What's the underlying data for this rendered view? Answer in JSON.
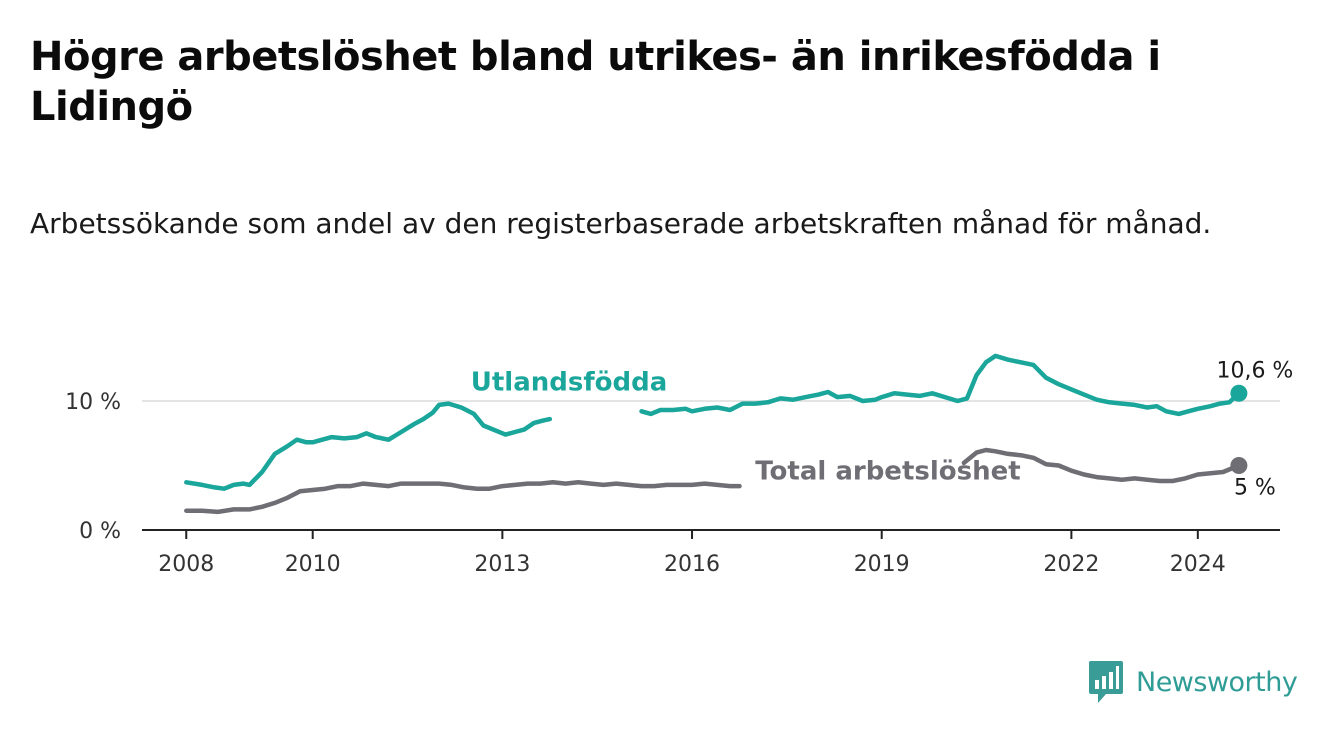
{
  "header": {
    "title": "Högre arbetslöshet bland utrikes- än inrikesfödda i Lidingö",
    "subtitle": "Arbetssökande som andel av den registerbaserade arbetskraften månad för månad."
  },
  "brand": {
    "name": "Newsworthy",
    "icon": "newsworthy-logo-icon",
    "color": "#2f9c96"
  },
  "chart_data": {
    "type": "line",
    "xlim": [
      2007.3,
      2025.3
    ],
    "ylim": [
      0,
      13.8
    ],
    "x_ticks": [
      2008,
      2010,
      2013,
      2016,
      2019,
      2022,
      2024
    ],
    "x_tick_labels": [
      "2008",
      "2010",
      "2013",
      "2016",
      "2019",
      "2022",
      "2024"
    ],
    "y_ticks": [
      0,
      10
    ],
    "y_tick_labels": [
      "0 %",
      "10 %"
    ],
    "grid": "horizontal",
    "series": [
      {
        "name": "Utlandsfödda",
        "color": "#1aa69a",
        "label": "Utlandsfödda",
        "end_label": "10,6 %",
        "points": [
          [
            2008.0,
            3.7
          ],
          [
            2008.25,
            3.5
          ],
          [
            2008.45,
            3.3
          ],
          [
            2008.6,
            3.2
          ],
          [
            2008.75,
            3.5
          ],
          [
            2008.9,
            3.6
          ],
          [
            2009.0,
            3.5
          ],
          [
            2009.2,
            4.5
          ],
          [
            2009.4,
            5.9
          ],
          [
            2009.6,
            6.5
          ],
          [
            2009.75,
            7.0
          ],
          [
            2009.9,
            6.8
          ],
          [
            2010.0,
            6.8
          ],
          [
            2010.15,
            7.0
          ],
          [
            2010.3,
            7.2
          ],
          [
            2010.5,
            7.1
          ],
          [
            2010.7,
            7.2
          ],
          [
            2010.85,
            7.5
          ],
          [
            2011.0,
            7.2
          ],
          [
            2011.2,
            7.0
          ],
          [
            2011.4,
            7.6
          ],
          [
            2011.6,
            8.2
          ],
          [
            2011.75,
            8.6
          ],
          [
            2011.9,
            9.1
          ],
          [
            2012.0,
            9.7
          ],
          [
            2012.15,
            9.8
          ],
          [
            2012.35,
            9.5
          ],
          [
            2012.55,
            9.0
          ],
          [
            2012.7,
            8.1
          ],
          [
            2012.9,
            7.7
          ],
          [
            2013.05,
            7.4
          ],
          [
            2013.2,
            7.6
          ],
          [
            2013.35,
            7.8
          ],
          [
            2013.5,
            8.3
          ],
          [
            2013.65,
            8.5
          ],
          [
            2013.75,
            8.6
          ],
          [
            2015.2,
            9.2
          ],
          [
            2015.35,
            9.0
          ],
          [
            2015.5,
            9.3
          ],
          [
            2015.7,
            9.3
          ],
          [
            2015.9,
            9.4
          ],
          [
            2016.0,
            9.2
          ],
          [
            2016.2,
            9.4
          ],
          [
            2016.4,
            9.5
          ],
          [
            2016.6,
            9.3
          ],
          [
            2016.8,
            9.8
          ],
          [
            2017.0,
            9.8
          ],
          [
            2017.2,
            9.9
          ],
          [
            2017.4,
            10.2
          ],
          [
            2017.6,
            10.1
          ],
          [
            2017.8,
            10.3
          ],
          [
            2018.0,
            10.5
          ],
          [
            2018.15,
            10.7
          ],
          [
            2018.3,
            10.3
          ],
          [
            2018.5,
            10.4
          ],
          [
            2018.7,
            10.0
          ],
          [
            2018.9,
            10.1
          ],
          [
            2019.0,
            10.3
          ],
          [
            2019.2,
            10.6
          ],
          [
            2019.4,
            10.5
          ],
          [
            2019.6,
            10.4
          ],
          [
            2019.8,
            10.6
          ],
          [
            2020.0,
            10.3
          ],
          [
            2020.2,
            10.0
          ],
          [
            2020.35,
            10.2
          ],
          [
            2020.5,
            12.0
          ],
          [
            2020.65,
            13.0
          ],
          [
            2020.8,
            13.5
          ],
          [
            2021.0,
            13.2
          ],
          [
            2021.2,
            13.0
          ],
          [
            2021.4,
            12.8
          ],
          [
            2021.6,
            11.8
          ],
          [
            2021.8,
            11.3
          ],
          [
            2022.0,
            10.9
          ],
          [
            2022.2,
            10.5
          ],
          [
            2022.4,
            10.1
          ],
          [
            2022.6,
            9.9
          ],
          [
            2022.8,
            9.8
          ],
          [
            2023.0,
            9.7
          ],
          [
            2023.2,
            9.5
          ],
          [
            2023.35,
            9.6
          ],
          [
            2023.5,
            9.2
          ],
          [
            2023.7,
            9.0
          ],
          [
            2023.85,
            9.2
          ],
          [
            2024.0,
            9.4
          ],
          [
            2024.2,
            9.6
          ],
          [
            2024.35,
            9.8
          ],
          [
            2024.5,
            9.9
          ],
          [
            2024.65,
            10.6
          ]
        ]
      },
      {
        "name": "Total arbetslöshet",
        "color": "#6e6e74",
        "label": "Total arbetslöshet",
        "end_label": "5 %",
        "points": [
          [
            2008.0,
            1.5
          ],
          [
            2008.25,
            1.5
          ],
          [
            2008.5,
            1.4
          ],
          [
            2008.75,
            1.6
          ],
          [
            2009.0,
            1.6
          ],
          [
            2009.2,
            1.8
          ],
          [
            2009.4,
            2.1
          ],
          [
            2009.6,
            2.5
          ],
          [
            2009.8,
            3.0
          ],
          [
            2010.0,
            3.1
          ],
          [
            2010.2,
            3.2
          ],
          [
            2010.4,
            3.4
          ],
          [
            2010.6,
            3.4
          ],
          [
            2010.8,
            3.6
          ],
          [
            2011.0,
            3.5
          ],
          [
            2011.2,
            3.4
          ],
          [
            2011.4,
            3.6
          ],
          [
            2011.6,
            3.6
          ],
          [
            2011.8,
            3.6
          ],
          [
            2012.0,
            3.6
          ],
          [
            2012.2,
            3.5
          ],
          [
            2012.4,
            3.3
          ],
          [
            2012.6,
            3.2
          ],
          [
            2012.8,
            3.2
          ],
          [
            2013.0,
            3.4
          ],
          [
            2013.2,
            3.5
          ],
          [
            2013.4,
            3.6
          ],
          [
            2013.6,
            3.6
          ],
          [
            2013.8,
            3.7
          ],
          [
            2014.0,
            3.6
          ],
          [
            2014.2,
            3.7
          ],
          [
            2014.4,
            3.6
          ],
          [
            2014.6,
            3.5
          ],
          [
            2014.8,
            3.6
          ],
          [
            2015.0,
            3.5
          ],
          [
            2015.2,
            3.4
          ],
          [
            2015.4,
            3.4
          ],
          [
            2015.6,
            3.5
          ],
          [
            2015.8,
            3.5
          ],
          [
            2016.0,
            3.5
          ],
          [
            2016.2,
            3.6
          ],
          [
            2016.4,
            3.5
          ],
          [
            2016.6,
            3.4
          ],
          [
            2016.75,
            3.4
          ],
          [
            2020.3,
            5.2
          ],
          [
            2020.5,
            6.0
          ],
          [
            2020.65,
            6.2
          ],
          [
            2020.8,
            6.1
          ],
          [
            2021.0,
            5.9
          ],
          [
            2021.2,
            5.8
          ],
          [
            2021.4,
            5.6
          ],
          [
            2021.6,
            5.1
          ],
          [
            2021.8,
            5.0
          ],
          [
            2022.0,
            4.6
          ],
          [
            2022.2,
            4.3
          ],
          [
            2022.4,
            4.1
          ],
          [
            2022.6,
            4.0
          ],
          [
            2022.8,
            3.9
          ],
          [
            2023.0,
            4.0
          ],
          [
            2023.2,
            3.9
          ],
          [
            2023.4,
            3.8
          ],
          [
            2023.6,
            3.8
          ],
          [
            2023.8,
            4.0
          ],
          [
            2024.0,
            4.3
          ],
          [
            2024.2,
            4.4
          ],
          [
            2024.4,
            4.5
          ],
          [
            2024.65,
            5.0
          ]
        ]
      }
    ]
  }
}
